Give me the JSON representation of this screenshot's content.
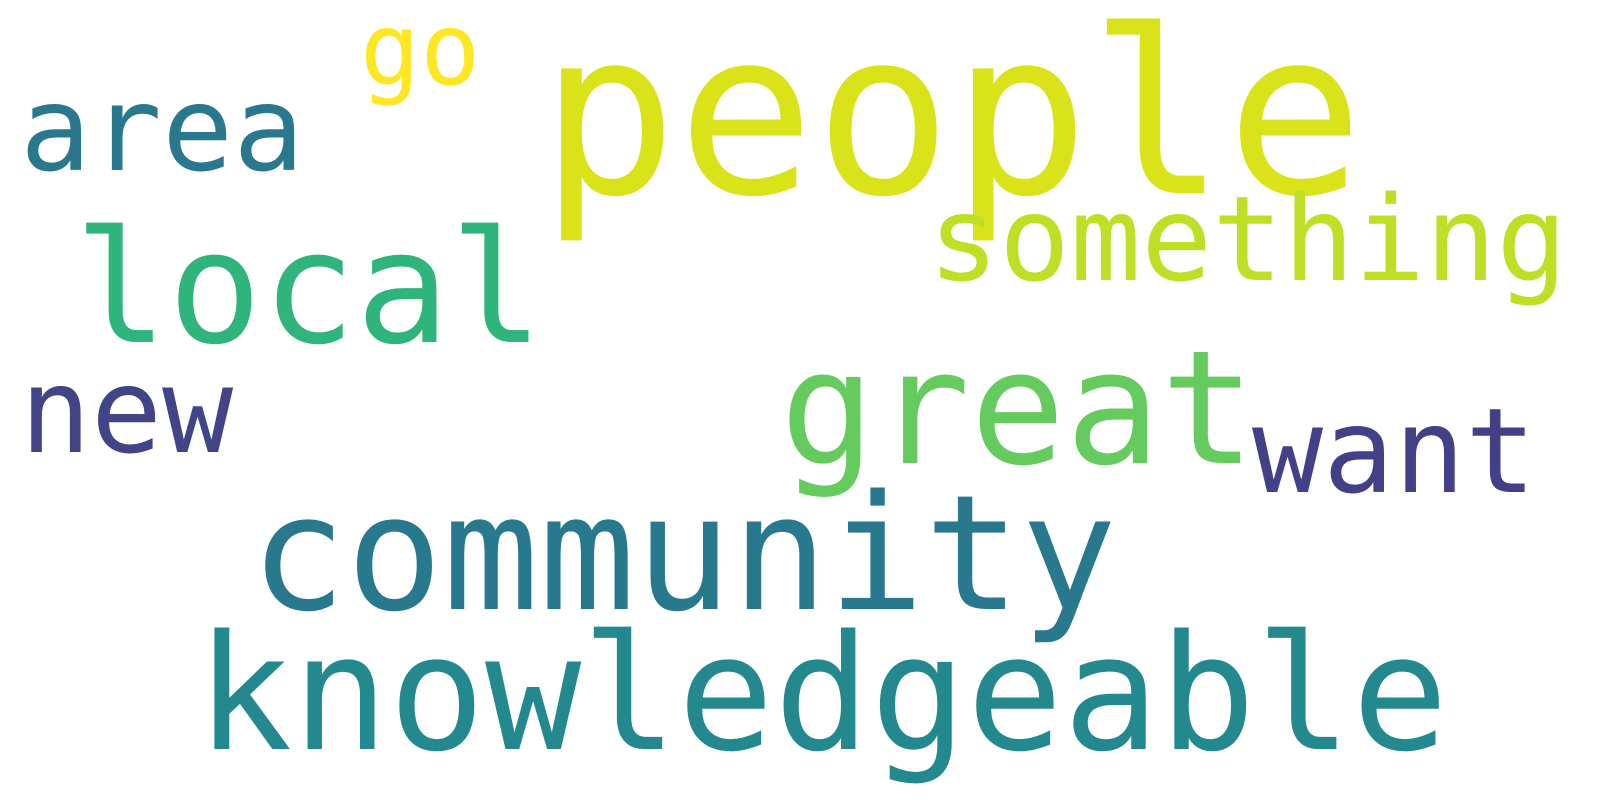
{
  "words": [
    {
      "id": "people",
      "text": "people",
      "color": "#dae319"
    },
    {
      "id": "go",
      "text": "go",
      "color": "#fde725"
    },
    {
      "id": "area",
      "text": "area",
      "color": "#2a788e"
    },
    {
      "id": "something",
      "text": "something",
      "color": "#bddf26"
    },
    {
      "id": "local",
      "text": "local",
      "color": "#2fb47c"
    },
    {
      "id": "new",
      "text": "new",
      "color": "#414487"
    },
    {
      "id": "great",
      "text": "great",
      "color": "#65cb5e"
    },
    {
      "id": "want",
      "text": "want",
      "color": "#424086"
    },
    {
      "id": "community",
      "text": "community",
      "color": "#29798e"
    },
    {
      "id": "knowledgeable",
      "text": "knowledgeable",
      "color": "#23898e"
    }
  ]
}
